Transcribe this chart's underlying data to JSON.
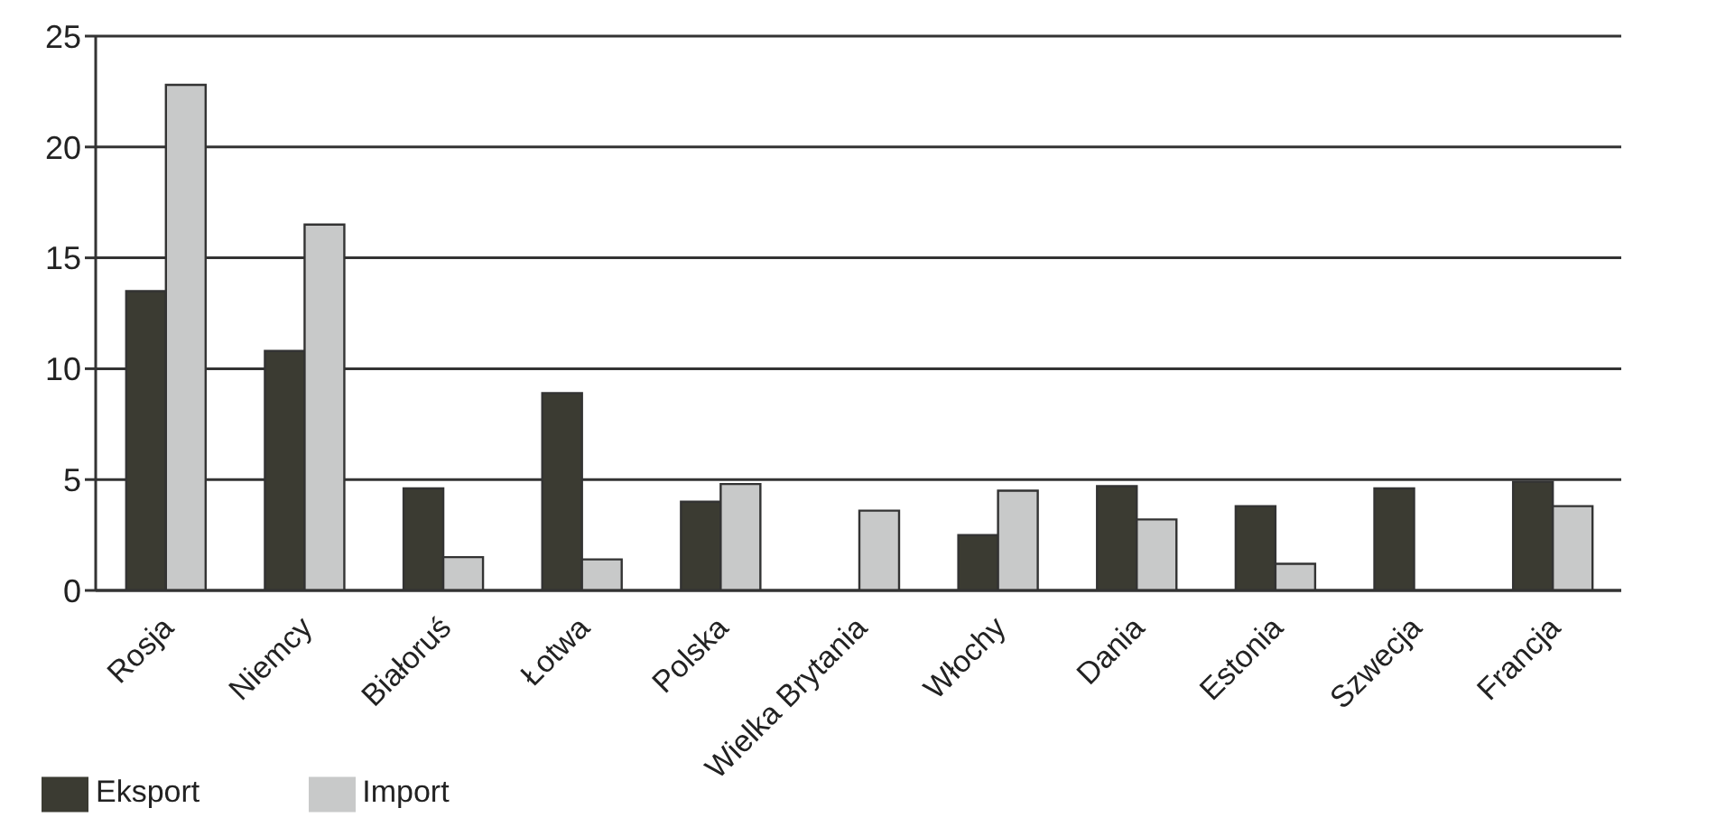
{
  "chart_data": {
    "type": "bar",
    "categories": [
      "Rosja",
      "Niemcy",
      "Białoruś",
      "Łotwa",
      "Polska",
      "Wielka Brytania",
      "Włochy",
      "Dania",
      "Estonia",
      "Szwecja",
      "Francja"
    ],
    "series": [
      {
        "name": "Eksport",
        "color": "#3b3b32",
        "values": [
          13.5,
          10.8,
          4.6,
          8.9,
          4.0,
          null,
          2.5,
          4.7,
          3.8,
          4.6,
          4.9
        ]
      },
      {
        "name": "Import",
        "color": "#c8c9c9",
        "values": [
          22.8,
          16.5,
          1.5,
          1.4,
          4.8,
          3.6,
          4.5,
          3.2,
          1.2,
          null,
          3.8
        ]
      }
    ],
    "ylim": [
      0,
      25
    ],
    "yticks": [
      0,
      5,
      10,
      15,
      20,
      25
    ],
    "grid": "y",
    "legend": "bottom left"
  }
}
